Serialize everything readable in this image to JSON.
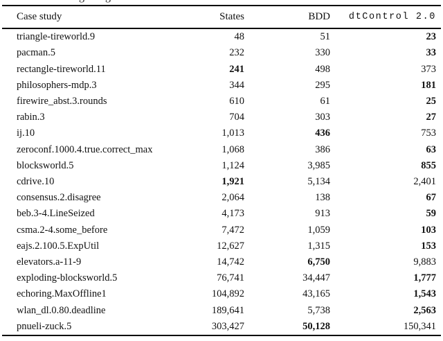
{
  "caption_fragment": {
    "char1": "g",
    "char2": "g"
  },
  "colors": {
    "text": "#111111",
    "rule": "#000000",
    "background": "#ffffff"
  },
  "chart_data": {
    "type": "table",
    "title": "",
    "columns": [
      "Case study",
      "States",
      "BDD",
      "dtControl 2.0"
    ],
    "rows": [
      {
        "name": "triangle-tireworld.9",
        "states": "48",
        "bdd": "51",
        "dt": "23",
        "bold": "dt"
      },
      {
        "name": "pacman.5",
        "states": "232",
        "bdd": "330",
        "dt": "33",
        "bold": "dt"
      },
      {
        "name": "rectangle-tireworld.11",
        "states": "241",
        "bdd": "498",
        "dt": "373",
        "bold": "states"
      },
      {
        "name": "philosophers-mdp.3",
        "states": "344",
        "bdd": "295",
        "dt": "181",
        "bold": "dt"
      },
      {
        "name": "firewire_abst.3.rounds",
        "states": "610",
        "bdd": "61",
        "dt": "25",
        "bold": "dt"
      },
      {
        "name": "rabin.3",
        "states": "704",
        "bdd": "303",
        "dt": "27",
        "bold": "dt"
      },
      {
        "name": "ij.10",
        "states": "1,013",
        "bdd": "436",
        "dt": "753",
        "bold": "bdd"
      },
      {
        "name": "zeroconf.1000.4.true.correct_max",
        "states": "1,068",
        "bdd": "386",
        "dt": "63",
        "bold": "dt"
      },
      {
        "name": "blocksworld.5",
        "states": "1,124",
        "bdd": "3,985",
        "dt": "855",
        "bold": "dt"
      },
      {
        "name": "cdrive.10",
        "states": "1,921",
        "bdd": "5,134",
        "dt": "2,401",
        "bold": "states"
      },
      {
        "name": "consensus.2.disagree",
        "states": "2,064",
        "bdd": "138",
        "dt": "67",
        "bold": "dt"
      },
      {
        "name": "beb.3-4.LineSeized",
        "states": "4,173",
        "bdd": "913",
        "dt": "59",
        "bold": "dt"
      },
      {
        "name": "csma.2-4.some_before",
        "states": "7,472",
        "bdd": "1,059",
        "dt": "103",
        "bold": "dt"
      },
      {
        "name": "eajs.2.100.5.ExpUtil",
        "states": "12,627",
        "bdd": "1,315",
        "dt": "153",
        "bold": "dt"
      },
      {
        "name": "elevators.a-11-9",
        "states": "14,742",
        "bdd": "6,750",
        "dt": "9,883",
        "bold": "bdd"
      },
      {
        "name": "exploding-blocksworld.5",
        "states": "76,741",
        "bdd": "34,447",
        "dt": "1,777",
        "bold": "dt"
      },
      {
        "name": "echoring.MaxOffline1",
        "states": "104,892",
        "bdd": "43,165",
        "dt": "1,543",
        "bold": "dt"
      },
      {
        "name": "wlan_dl.0.80.deadline",
        "states": "189,641",
        "bdd": "5,738",
        "dt": "2,563",
        "bold": "dt"
      },
      {
        "name": "pnueli-zuck.5",
        "states": "303,427",
        "bdd": "50,128",
        "dt": "150,341",
        "bold": "bdd"
      }
    ]
  },
  "table": {
    "headers": {
      "case_study": "Case study",
      "states": "States",
      "bdd": "BDD",
      "dtcontrol": "dtControl 2.0"
    }
  }
}
